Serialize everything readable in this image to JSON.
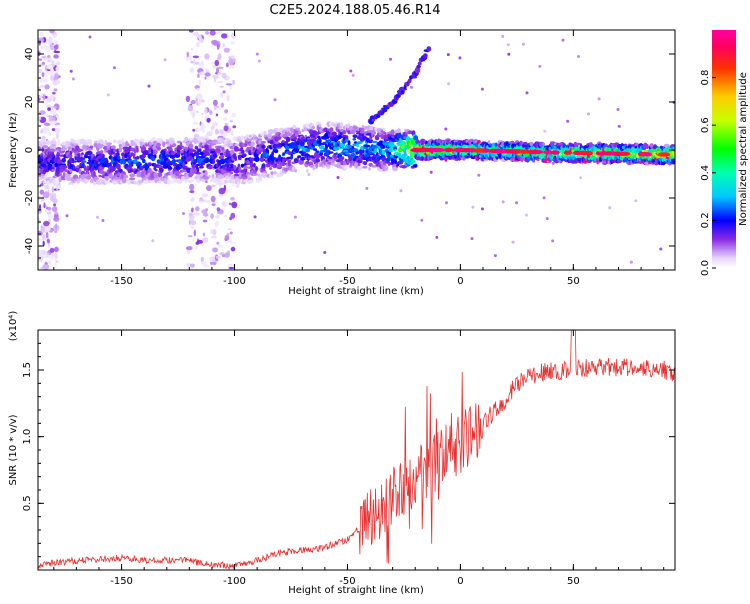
{
  "title": "C2E5.2024.188.05.46.R14",
  "chart_data": [
    {
      "type": "heatmap",
      "name": "spectrogram",
      "xlabel": "Height of straight line (km)",
      "ylabel": "Frequency (Hz)",
      "xlim": [
        -187,
        95
      ],
      "ylim": [
        -50,
        50
      ],
      "xticks": [
        -150,
        -100,
        -50,
        0,
        50
      ],
      "yticks": [
        -40,
        -20,
        0,
        20,
        40
      ],
      "xtick_labels": [
        "-150",
        "-100",
        "-50",
        "0",
        "50"
      ],
      "ytick_labels": [
        "-40",
        "-20",
        "0",
        "20",
        "40"
      ],
      "colorbar": {
        "label": "Normalized spectral amplitude",
        "range": [
          0,
          1
        ],
        "ticks": [
          0.0,
          0.2,
          0.4,
          0.6,
          0.8
        ],
        "tick_labels": [
          "0.0",
          "0.2",
          "0.4",
          "0.6",
          "0.8"
        ]
      },
      "features": {
        "main_band": {
          "description_points_x": [
            -187,
            -150,
            -110,
            -100,
            -80,
            -60,
            -45,
            -30,
            -20,
            0,
            40,
            95
          ],
          "center_hz": [
            -5,
            -5,
            -4,
            -5,
            -1,
            2,
            1,
            0,
            0,
            0,
            -1,
            -2
          ],
          "amplitude": [
            0.2,
            0.25,
            0.25,
            0.2,
            0.25,
            0.3,
            0.35,
            0.35,
            0.8,
            0.6,
            0.6,
            0.75
          ]
        },
        "vertical_interference_x": [
          [
            -187,
            -178
          ],
          [
            -121,
            -100
          ]
        ],
        "rising_branch": {
          "x": [
            -40,
            -30,
            -20,
            -14
          ],
          "hz": [
            12,
            20,
            32,
            43
          ]
        }
      }
    },
    {
      "type": "line",
      "name": "snr",
      "xlabel": "Height of straight line (km)",
      "ylabel": "SNR (10 * v/v)",
      "multiplier_label": "(x10⁴)",
      "xlim": [
        -187,
        95
      ],
      "ylim": [
        0,
        1.8
      ],
      "xticks": [
        -150,
        -100,
        -50,
        0,
        50
      ],
      "yticks": [
        0.5,
        1.0,
        1.5
      ],
      "xtick_labels": [
        "-150",
        "-100",
        "-50",
        "0",
        "50"
      ],
      "ytick_labels": [
        "0.5",
        "1.0",
        "1.5"
      ],
      "color": "#e83030",
      "trend": {
        "x": [
          -187,
          -170,
          -150,
          -135,
          -125,
          -110,
          -100,
          -90,
          -80,
          -70,
          -60,
          -50,
          -40,
          -30,
          -20,
          -10,
          0,
          10,
          20,
          25,
          35,
          50,
          60,
          70,
          80,
          90,
          95
        ],
        "y": [
          0.03,
          0.06,
          0.08,
          0.06,
          0.07,
          0.03,
          0.02,
          0.06,
          0.12,
          0.14,
          0.16,
          0.22,
          0.38,
          0.55,
          0.7,
          0.82,
          0.95,
          1.1,
          1.28,
          1.4,
          1.48,
          1.5,
          1.52,
          1.52,
          1.52,
          1.5,
          1.48
        ]
      }
    }
  ]
}
